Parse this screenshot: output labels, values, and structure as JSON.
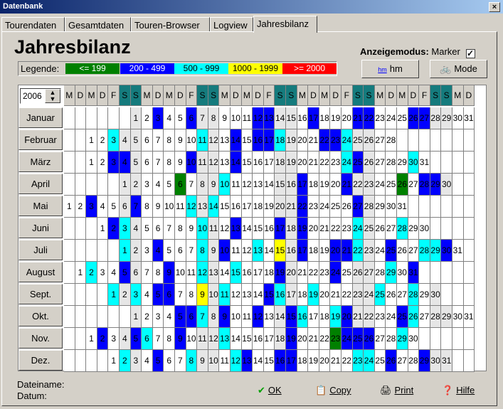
{
  "window": {
    "title": "Datenbank",
    "close": "×"
  },
  "tabs": [
    "Tourendaten",
    "Gesamtdaten",
    "Touren-Browser",
    "Logview",
    "Jahresbilanz"
  ],
  "page": {
    "title": "Jahresbilanz"
  },
  "mode": {
    "label": "Anzeigemodus:",
    "value": "Marker",
    "checked": "✓"
  },
  "legend": {
    "label": "Legende:",
    "items": [
      {
        "text": "<= 199",
        "bg": "#008000",
        "fg": "#ffffff"
      },
      {
        "text": "200 - 499",
        "bg": "#0000ff",
        "fg": "#ffffff"
      },
      {
        "text": "500 - 999",
        "bg": "#00ffff",
        "fg": "#000000"
      },
      {
        "text": "1000 - 1999",
        "bg": "#ffff00",
        "fg": "#000000"
      },
      {
        "text": ">= 2000",
        "bg": "#ff0000",
        "fg": "#ffffff"
      }
    ]
  },
  "buttons": {
    "hm": "hm",
    "mode": "Mode",
    "ok": "OK",
    "copy": "Copy",
    "print": "Print",
    "help": "Hilfe"
  },
  "year": "2006",
  "weekday_header": [
    "M",
    "D",
    "M",
    "D",
    "F",
    "S",
    "S",
    "M",
    "D",
    "M",
    "D",
    "F",
    "S",
    "S",
    "M",
    "D",
    "M",
    "D",
    "F",
    "S",
    "S",
    "M",
    "D",
    "M",
    "D",
    "F",
    "S",
    "S",
    "M",
    "D",
    "M",
    "D",
    "F",
    "S",
    "S",
    "M",
    "D"
  ],
  "months": [
    {
      "name": "Januar",
      "offset": 6,
      "days": 31,
      "marks": {
        "3": "b",
        "6": "b",
        "12": "b",
        "13": "b",
        "17": "b",
        "21": "b",
        "22": "b",
        "26": "b",
        "27": "b"
      }
    },
    {
      "name": "Februar",
      "offset": 2,
      "days": 28,
      "marks": {
        "3": "c",
        "11": "c",
        "14": "b",
        "16": "b",
        "17": "b",
        "18": "c",
        "22": "b",
        "23": "b",
        "24": "c"
      }
    },
    {
      "name": "März",
      "offset": 2,
      "days": 31,
      "marks": {
        "3": "b",
        "4": "b",
        "10": "b",
        "14": "b",
        "24": "c",
        "25": "b",
        "30": "c"
      }
    },
    {
      "name": "April",
      "offset": 5,
      "days": 30,
      "marks": {
        "6": "g",
        "10": "c",
        "17": "b",
        "21": "b",
        "26": "g",
        "28": "b",
        "29": "b"
      }
    },
    {
      "name": "Mai",
      "offset": 0,
      "days": 31,
      "marks": {
        "3": "b",
        "7": "b",
        "12": "c",
        "14": "c",
        "22": "b",
        "27": "b"
      }
    },
    {
      "name": "Juni",
      "offset": 3,
      "days": 30,
      "marks": {
        "2": "b",
        "3": "c",
        "10": "c",
        "13": "b",
        "17": "b",
        "19": "b",
        "24": "c",
        "28": "c"
      }
    },
    {
      "name": "Juli",
      "offset": 5,
      "days": 31,
      "marks": {
        "1": "c",
        "4": "b",
        "8": "c",
        "10": "b",
        "13": "c",
        "15": "y",
        "17": "b",
        "20": "b",
        "21": "b",
        "22": "c",
        "25": "b",
        "28": "c",
        "29": "c",
        "30": "b"
      }
    },
    {
      "name": "August",
      "offset": 1,
      "days": 31,
      "marks": {
        "2": "c",
        "5": "b",
        "9": "b",
        "12": "c",
        "15": "c",
        "19": "b",
        "24": "b",
        "29": "c",
        "31": "b"
      }
    },
    {
      "name": "Sept.",
      "offset": 4,
      "days": 30,
      "marks": {
        "1": "c",
        "3": "c",
        "5": "b",
        "6": "b",
        "9": "y",
        "11": "c",
        "15": "b",
        "16": "c",
        "19": "c",
        "25": "c",
        "28": "c"
      }
    },
    {
      "name": "Okt.",
      "offset": 6,
      "days": 31,
      "marks": {
        "5": "b",
        "6": "b",
        "7": "c",
        "9": "b",
        "12": "b",
        "15": "b",
        "16": "c",
        "19": "c",
        "20": "b",
        "25": "b",
        "26": "c"
      }
    },
    {
      "name": "Nov.",
      "offset": 2,
      "days": 30,
      "marks": {
        "2": "b",
        "5": "b",
        "6": "c",
        "9": "b",
        "13": "c",
        "19": "b",
        "23": "g",
        "24": "b",
        "25": "b",
        "26": "b",
        "29": "c"
      }
    },
    {
      "name": "Dez.",
      "offset": 4,
      "days": 31,
      "marks": {
        "2": "c",
        "5": "b",
        "8": "c",
        "12": "c",
        "13": "b",
        "16": "b",
        "17": "b",
        "23": "c",
        "24": "c",
        "26": "b",
        "29": "b"
      }
    }
  ],
  "footer": {
    "filename_label": "Dateiname:",
    "date_label": "Datum:"
  }
}
